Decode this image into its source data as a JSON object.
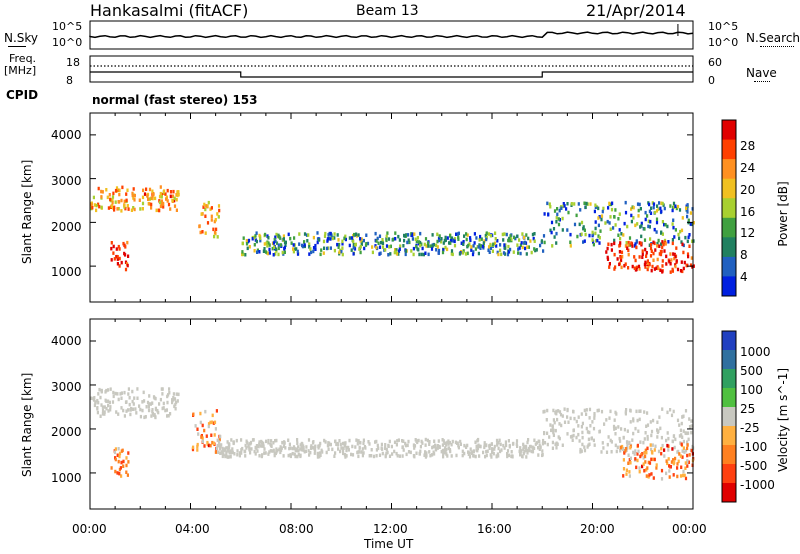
{
  "header": {
    "title": "Hankasalmi (fitACF)",
    "beam": "Beam 13",
    "date": "21/Apr/2014"
  },
  "top_panel": {
    "nsky_label": "N.Sky",
    "nsky_ticks": [
      "10^5",
      "10^0"
    ],
    "nsearch_ticks": [
      "10^5",
      "10^0"
    ],
    "nsearch_label": "N.Search",
    "freq_label": "Freq.",
    "freq_unit": "[MHz]",
    "freq_ticks": [
      "18",
      "8"
    ],
    "nave_ticks": [
      "60",
      "0"
    ],
    "nave_label": "Nave",
    "cpid_label": "CPID",
    "cpid_value": "normal (fast stereo) 153"
  },
  "chart_data": [
    {
      "type": "heatmap",
      "parameter": "Power",
      "ylabel": "Slant Range [km]",
      "ylim": [
        180,
        4500
      ],
      "yticks": [
        "4000",
        "3000",
        "2000",
        "1000"
      ],
      "colorbar_label": "Power [dB]",
      "colorbar_ticks": [
        "28",
        "24",
        "20",
        "16",
        "12",
        "8",
        "4"
      ],
      "colorbar_colors": [
        "#e00000",
        "#ff4000",
        "#ff9020",
        "#f0c020",
        "#a8d030",
        "#40a040",
        "#208060",
        "#2060c0",
        "#0020e0"
      ],
      "features": [
        {
          "t": [
            0.0,
            3.5
          ],
          "range": [
            2300,
            2850
          ],
          "level": "high"
        },
        {
          "t": [
            0.8,
            1.5
          ],
          "range": [
            950,
            1600
          ],
          "level": "very high"
        },
        {
          "t": [
            4.3,
            5.1
          ],
          "range": [
            1700,
            2500
          ],
          "level": "high"
        },
        {
          "t": [
            6.0,
            18.0
          ],
          "range": [
            1300,
            1800
          ],
          "level": "moderate"
        },
        {
          "t": [
            18.0,
            24.0
          ],
          "range": [
            1500,
            2500
          ],
          "level": "moderate"
        },
        {
          "t": [
            20.5,
            24.0
          ],
          "range": [
            900,
            1600
          ],
          "level": "very high"
        }
      ]
    },
    {
      "type": "heatmap",
      "parameter": "Velocity",
      "ylabel": "Slant Range [km]",
      "ylim": [
        180,
        4500
      ],
      "yticks": [
        "4000",
        "3000",
        "2000",
        "1000"
      ],
      "colorbar_label": "Velocity [m s^-1]",
      "colorbar_ticks": [
        "1000",
        "500",
        "100",
        "25",
        "-25",
        "-100",
        "-500",
        "-1000"
      ],
      "colorbar_colors": [
        "#2040c0",
        "#30709f",
        "#30a060",
        "#50c040",
        "#c8c8c0",
        "#ffb040",
        "#ff8020",
        "#ff4010",
        "#e00000"
      ],
      "features": [
        {
          "t": [
            0.0,
            3.5
          ],
          "range": [
            2300,
            2950
          ],
          "level": "near zero"
        },
        {
          "t": [
            0.8,
            1.5
          ],
          "range": [
            950,
            1600
          ],
          "level": "negative"
        },
        {
          "t": [
            4.0,
            5.2
          ],
          "range": [
            1500,
            2500
          ],
          "level": "negative"
        },
        {
          "t": [
            5.0,
            18.0
          ],
          "range": [
            1400,
            1800
          ],
          "level": "near zero"
        },
        {
          "t": [
            18.0,
            24.0
          ],
          "range": [
            1500,
            2500
          ],
          "level": "near zero"
        },
        {
          "t": [
            21.0,
            24.0
          ],
          "range": [
            900,
            1700
          ],
          "level": "negative"
        }
      ]
    }
  ],
  "xaxis": {
    "ticks": [
      "00:00",
      "04:00",
      "08:00",
      "12:00",
      "16:00",
      "20:00",
      "00:00"
    ],
    "label": "Time UT"
  }
}
